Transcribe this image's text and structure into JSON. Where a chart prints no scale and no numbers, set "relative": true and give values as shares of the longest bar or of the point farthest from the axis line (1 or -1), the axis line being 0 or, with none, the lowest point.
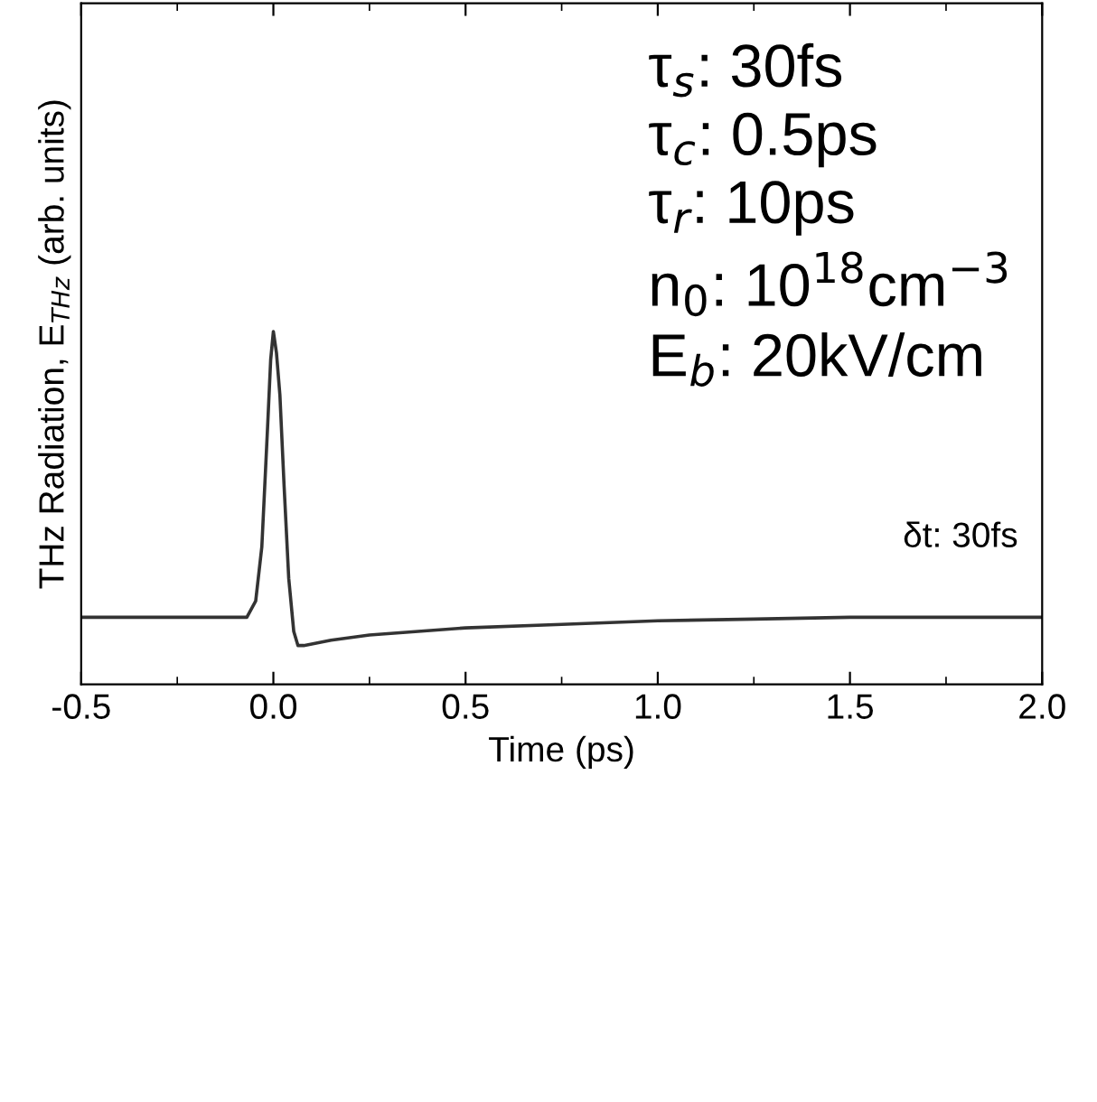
{
  "chart_data": {
    "type": "line",
    "relative": true,
    "xlabel": "Time (ps)",
    "ylabel": "THz Radiation, E$_{THz}$ (arb. units)",
    "xlim": [
      -0.5,
      2.0
    ],
    "xticks": [
      {
        "value": -0.5,
        "label": "-0.5"
      },
      {
        "value": 0.0,
        "label": "0.0"
      },
      {
        "value": 0.5,
        "label": "0.5"
      },
      {
        "value": 1.0,
        "label": "1.0"
      },
      {
        "value": 1.5,
        "label": "1.5"
      },
      {
        "value": 2.0,
        "label": "2.0"
      }
    ],
    "grid": false,
    "legend": false,
    "marker": "none",
    "line_style": "solid",
    "series": [
      {
        "color": "#333333",
        "x": [
          -0.5,
          -0.2,
          -0.08,
          -0.069,
          -0.046,
          -0.03,
          -0.015,
          -0.007,
          0.0,
          0.008,
          0.017,
          0.028,
          0.04,
          0.053,
          0.064,
          0.079,
          0.15,
          0.25,
          0.5,
          0.75,
          1.0,
          1.25,
          1.5,
          2.0
        ],
        "values": [
          0.19,
          0.19,
          0.19,
          0.19,
          0.236,
          0.39,
          0.73,
          0.92,
          1.0,
          0.94,
          0.82,
          0.56,
          0.3,
          0.15,
          0.11,
          0.11,
          0.125,
          0.14,
          0.16,
          0.17,
          0.18,
          0.185,
          0.19,
          0.19
        ]
      }
    ],
    "annotations": [
      "τ$_{s}$: 30fs",
      "τ$_{c}$: 0.5ps",
      "τ$_{r}$: 10ps",
      "n$_{0}$: 10$^{18}$cm$^{−3}$",
      "E$_{b}$: 20kV/cm",
      "δt: 30fs"
    ]
  }
}
